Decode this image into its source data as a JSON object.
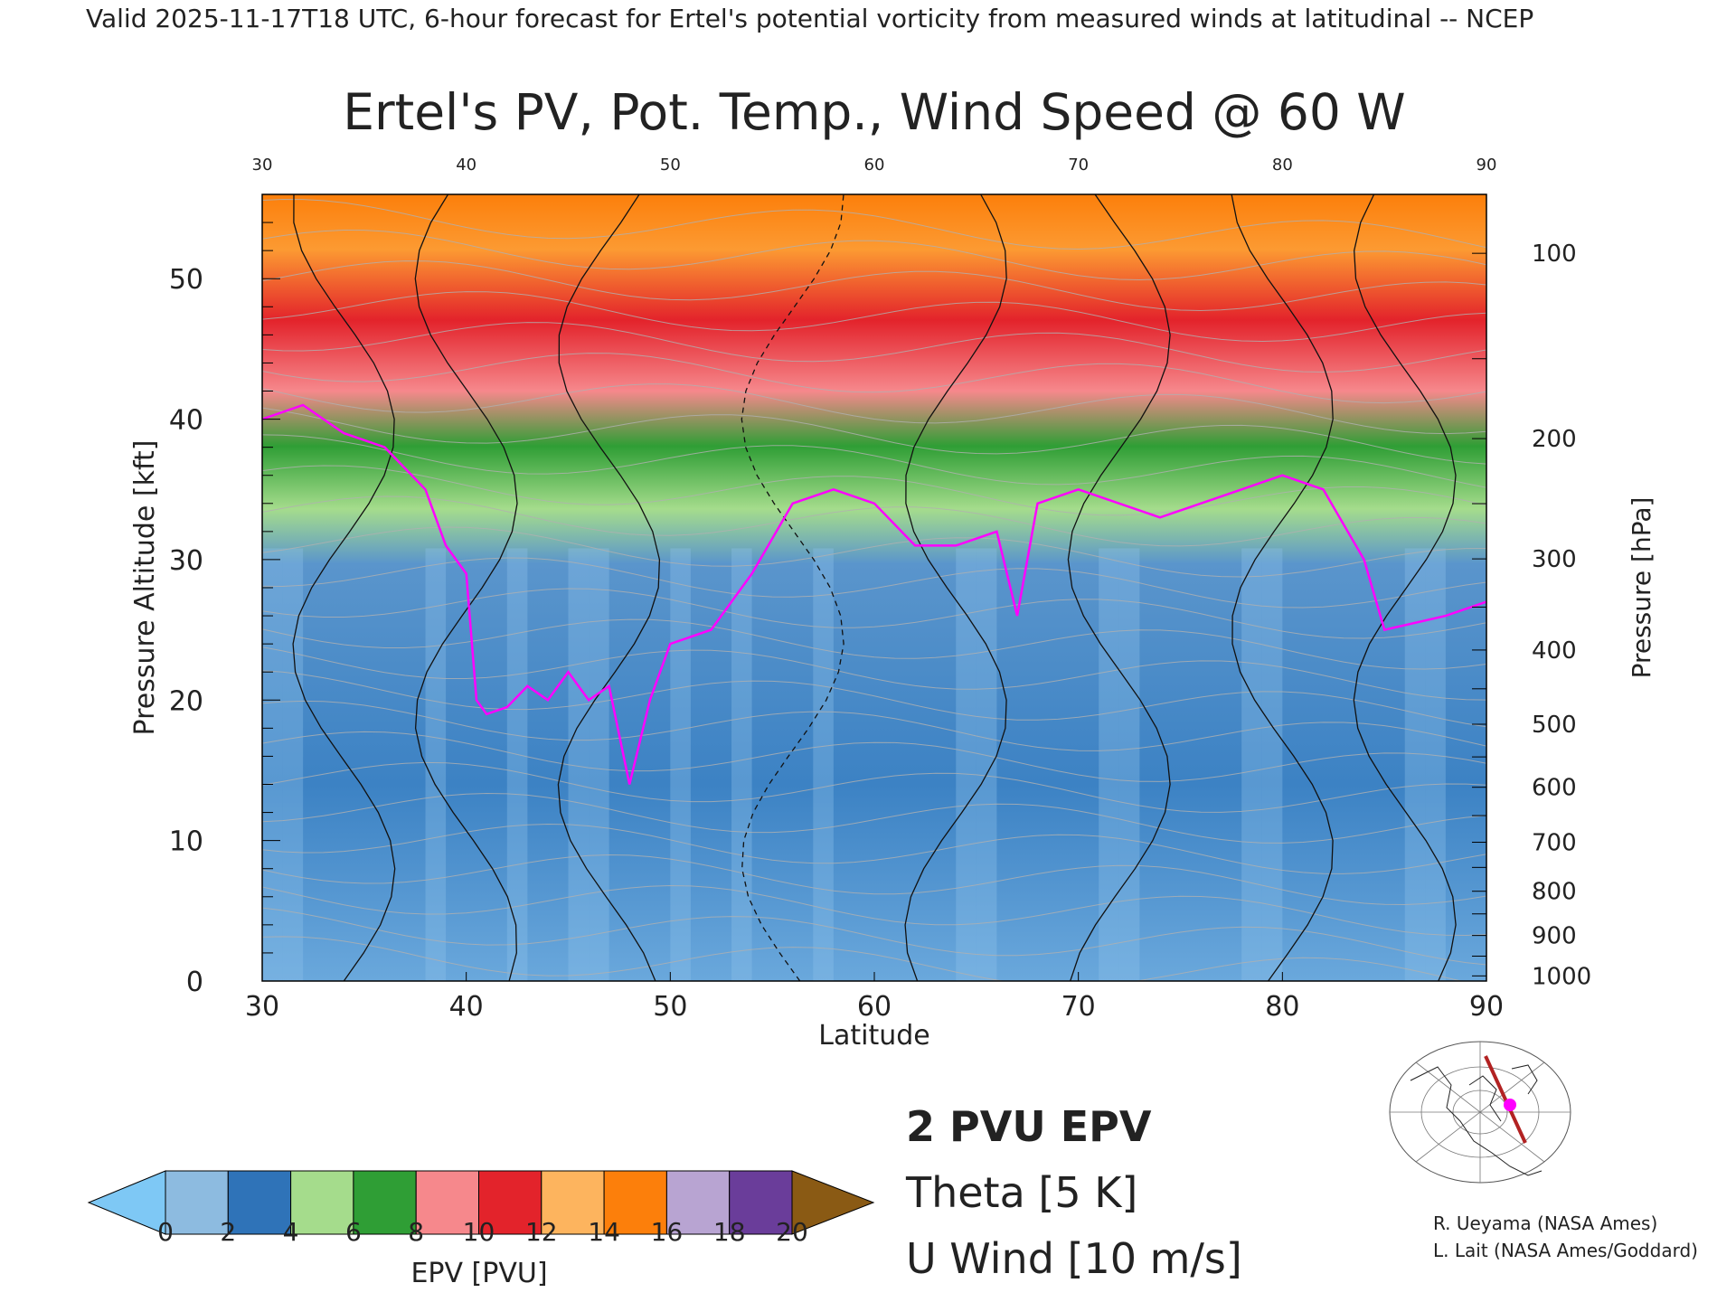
{
  "header": {
    "valid_line": "Valid 2025-11-17T18 UTC, 6-hour forecast for Ertel's potential vorticity from measured winds at latitudinal -- NCEP"
  },
  "chart_data": {
    "type": "heatmap",
    "title": "Ertel's PV, Pot. Temp., Wind Speed @ 60 W",
    "xlabel": "Latitude",
    "ylabel": "Pressure Altitude [kft]",
    "ylabel_right": "Pressure [hPa]",
    "xlim": [
      30,
      90
    ],
    "ylim": [
      0,
      56
    ],
    "x_ticks": [
      30,
      40,
      50,
      60,
      70,
      80,
      90
    ],
    "x_tick_labels": [
      "30",
      "40",
      "50",
      "60",
      "70",
      "80",
      "90"
    ],
    "top_tick_labels": [
      "30",
      "40",
      "50",
      "60",
      "70",
      "80",
      "90"
    ],
    "y_ticks": [
      0,
      10,
      20,
      30,
      40,
      50
    ],
    "y_tick_labels": [
      "0",
      "10",
      "20",
      "30",
      "40",
      "50"
    ],
    "pressure_ticks": [
      {
        "hpa": 100,
        "label": "100"
      },
      {
        "hpa": 200,
        "label": "200"
      },
      {
        "hpa": 300,
        "label": "300"
      },
      {
        "hpa": 400,
        "label": "400"
      },
      {
        "hpa": 500,
        "label": "500"
      },
      {
        "hpa": 600,
        "label": "600"
      },
      {
        "hpa": 700,
        "label": "700"
      },
      {
        "hpa": 800,
        "label": "800"
      },
      {
        "hpa": 900,
        "label": "900"
      },
      {
        "hpa": 1000,
        "label": "1000"
      }
    ],
    "tropopause_2pvu_kft": [
      {
        "lat": 30,
        "alt": 40
      },
      {
        "lat": 32,
        "alt": 41
      },
      {
        "lat": 34,
        "alt": 39
      },
      {
        "lat": 36,
        "alt": 38
      },
      {
        "lat": 38,
        "alt": 35
      },
      {
        "lat": 39,
        "alt": 31
      },
      {
        "lat": 40,
        "alt": 29
      },
      {
        "lat": 40.5,
        "alt": 20
      },
      {
        "lat": 41,
        "alt": 19
      },
      {
        "lat": 42,
        "alt": 19.5
      },
      {
        "lat": 43,
        "alt": 21
      },
      {
        "lat": 44,
        "alt": 20
      },
      {
        "lat": 45,
        "alt": 22
      },
      {
        "lat": 46,
        "alt": 20
      },
      {
        "lat": 47,
        "alt": 21
      },
      {
        "lat": 48,
        "alt": 14
      },
      {
        "lat": 49,
        "alt": 20
      },
      {
        "lat": 50,
        "alt": 24
      },
      {
        "lat": 52,
        "alt": 25
      },
      {
        "lat": 54,
        "alt": 29
      },
      {
        "lat": 56,
        "alt": 34
      },
      {
        "lat": 58,
        "alt": 35
      },
      {
        "lat": 60,
        "alt": 34
      },
      {
        "lat": 62,
        "alt": 31
      },
      {
        "lat": 64,
        "alt": 31
      },
      {
        "lat": 66,
        "alt": 32
      },
      {
        "lat": 67,
        "alt": 26
      },
      {
        "lat": 68,
        "alt": 34
      },
      {
        "lat": 70,
        "alt": 35
      },
      {
        "lat": 72,
        "alt": 34
      },
      {
        "lat": 74,
        "alt": 33
      },
      {
        "lat": 76,
        "alt": 34
      },
      {
        "lat": 78,
        "alt": 35
      },
      {
        "lat": 80,
        "alt": 36
      },
      {
        "lat": 82,
        "alt": 35
      },
      {
        "lat": 84,
        "alt": 30
      },
      {
        "lat": 85,
        "alt": 25
      },
      {
        "lat": 88,
        "alt": 26
      },
      {
        "lat": 90,
        "alt": 27
      }
    ]
  },
  "colorbar": {
    "label": "EPV [PVU]",
    "min": 0,
    "max": 20,
    "tick_labels": [
      "0",
      "2",
      "4",
      "6",
      "8",
      "10",
      "12",
      "14",
      "16",
      "18",
      "20"
    ],
    "colors": [
      "#8dbbe0",
      "#2f73b8",
      "#a5dc8c",
      "#2f9e35",
      "#f6888c",
      "#e3232b",
      "#fdb45e",
      "#fc7f0b",
      "#b8a4d2",
      "#6a3d9a",
      "#fef59b"
    ],
    "under_color": "#7ec8f5",
    "over_color": "#8a5a14"
  },
  "legend": {
    "epv_label": "2 PVU EPV",
    "epv_color": "#ff00ff",
    "theta_label": "Theta [5 K]",
    "theta_color": "#b0b0b0",
    "uwind_label": "U Wind [10 m/s]",
    "uwind_color": "#111111"
  },
  "credits": {
    "line1": "R. Ueyama (NASA Ames)",
    "line2": "L. Lait (NASA Ames/Goddard)"
  },
  "inset_map": {
    "marker_color": "#ff00ff",
    "track_color": "#b22222"
  }
}
